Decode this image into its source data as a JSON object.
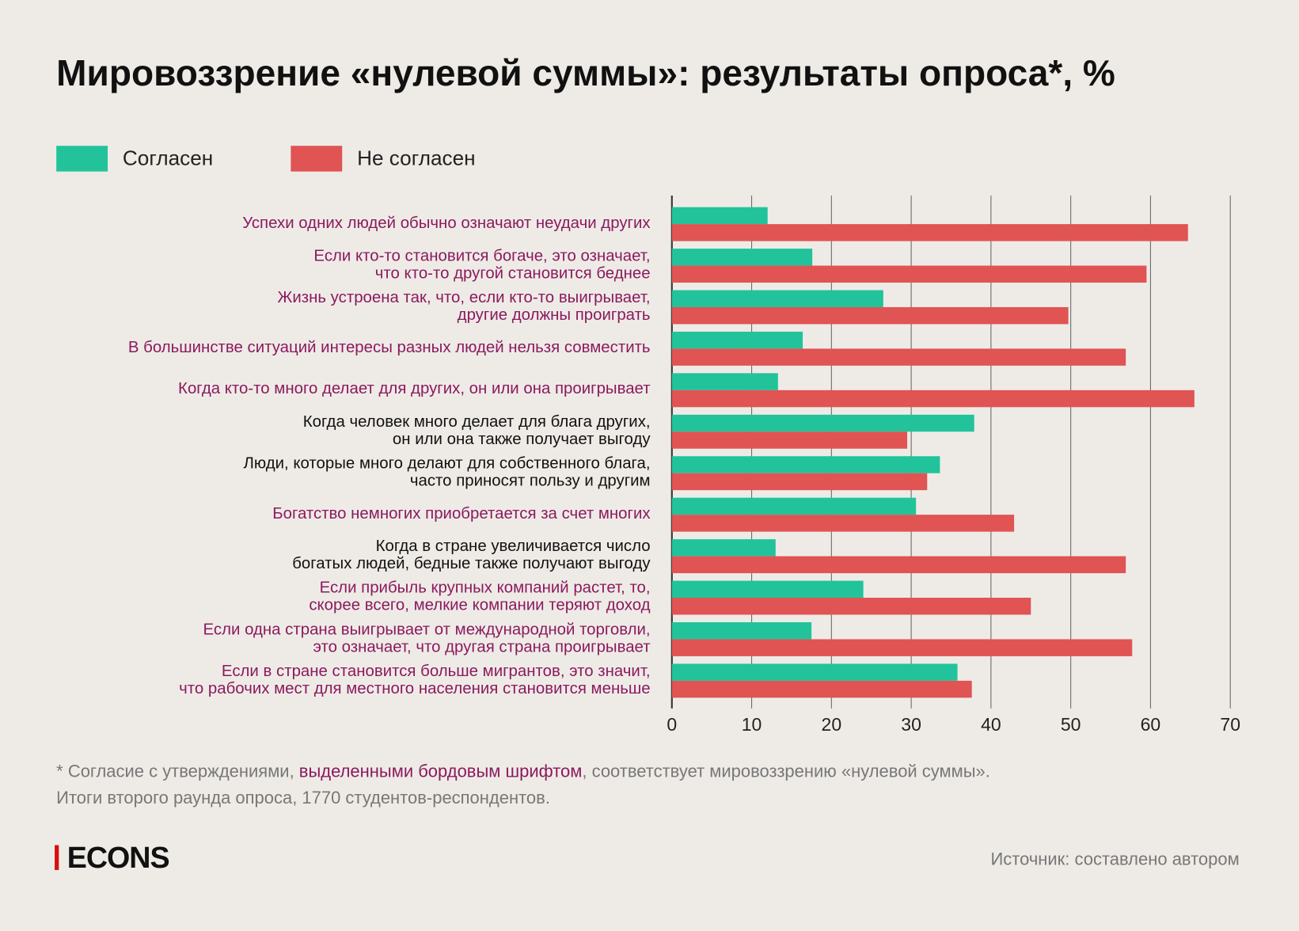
{
  "title": "Мировоззрение «нулевой суммы»: результаты опроса*, %",
  "colors": {
    "agree": "#22c39a",
    "disagree": "#e05454",
    "zero_sum_label": "#8b1a5e",
    "neutral_label": "#111111"
  },
  "chart_data": {
    "type": "bar",
    "orientation": "horizontal",
    "xlim": [
      0,
      70
    ],
    "xticks": [
      "0",
      "10",
      "20",
      "30",
      "40",
      "50",
      "60",
      "70"
    ],
    "grid": true,
    "legend_placement": "top-left",
    "categories": [
      {
        "lines": [
          "Успехи одних людей обычно означают неудачи других"
        ],
        "zero_sum": true
      },
      {
        "lines": [
          "Если кто-то становится богаче, это означает,",
          "что кто-то другой становится беднее"
        ],
        "zero_sum": true
      },
      {
        "lines": [
          "Жизнь устроена так, что, если кто-то выигрывает,",
          "другие должны проиграть"
        ],
        "zero_sum": true
      },
      {
        "lines": [
          "В большинстве ситуаций интересы разных людей нельзя совместить"
        ],
        "zero_sum": true
      },
      {
        "lines": [
          "Когда кто-то много делает для других, он или она проигрывает"
        ],
        "zero_sum": true
      },
      {
        "lines": [
          "Когда человек много делает для блага других,",
          "он или она также получает выгоду"
        ],
        "zero_sum": false
      },
      {
        "lines": [
          "Люди, которые много делают для собственного блага,",
          "часто приносят пользу и другим"
        ],
        "zero_sum": false
      },
      {
        "lines": [
          "Богатство немногих приобретается за счет многих"
        ],
        "zero_sum": true
      },
      {
        "lines": [
          "Когда в стране увеличивается число",
          "богатых людей, бедные также получают выгоду"
        ],
        "zero_sum": false
      },
      {
        "lines": [
          "Если прибыль крупных компаний растет, то,",
          "скорее всего, мелкие компании теряют доход"
        ],
        "zero_sum": true
      },
      {
        "lines": [
          "Если одна страна выигрывает от международной торговли,",
          "это означает, что другая страна проигрывает"
        ],
        "zero_sum": true
      },
      {
        "lines": [
          "Если в стране становится больше мигрантов, это значит,",
          "что рабочих мест для местного населения становится меньше"
        ],
        "zero_sum": true
      }
    ],
    "series": [
      {
        "name": "Согласен",
        "values": [
          12.0,
          17.6,
          26.5,
          16.4,
          13.3,
          37.9,
          33.6,
          30.6,
          13.0,
          24.0,
          17.5,
          35.8
        ]
      },
      {
        "name": "Не согласен",
        "values": [
          64.7,
          59.5,
          49.7,
          56.9,
          65.5,
          29.5,
          32.0,
          42.9,
          56.9,
          45.0,
          57.7,
          37.6
        ]
      }
    ]
  },
  "footnote": {
    "prefix": "* Согласие с утверждениями, ",
    "highlight": "выделенными бордовым шрифтом",
    "suffix": ", соответствует мировоззрению «нулевой суммы».",
    "line2": "Итоги второго раунда опроса, 1770 студентов-респондентов."
  },
  "logo": "ECONS",
  "source": "Источник: составлено автором"
}
